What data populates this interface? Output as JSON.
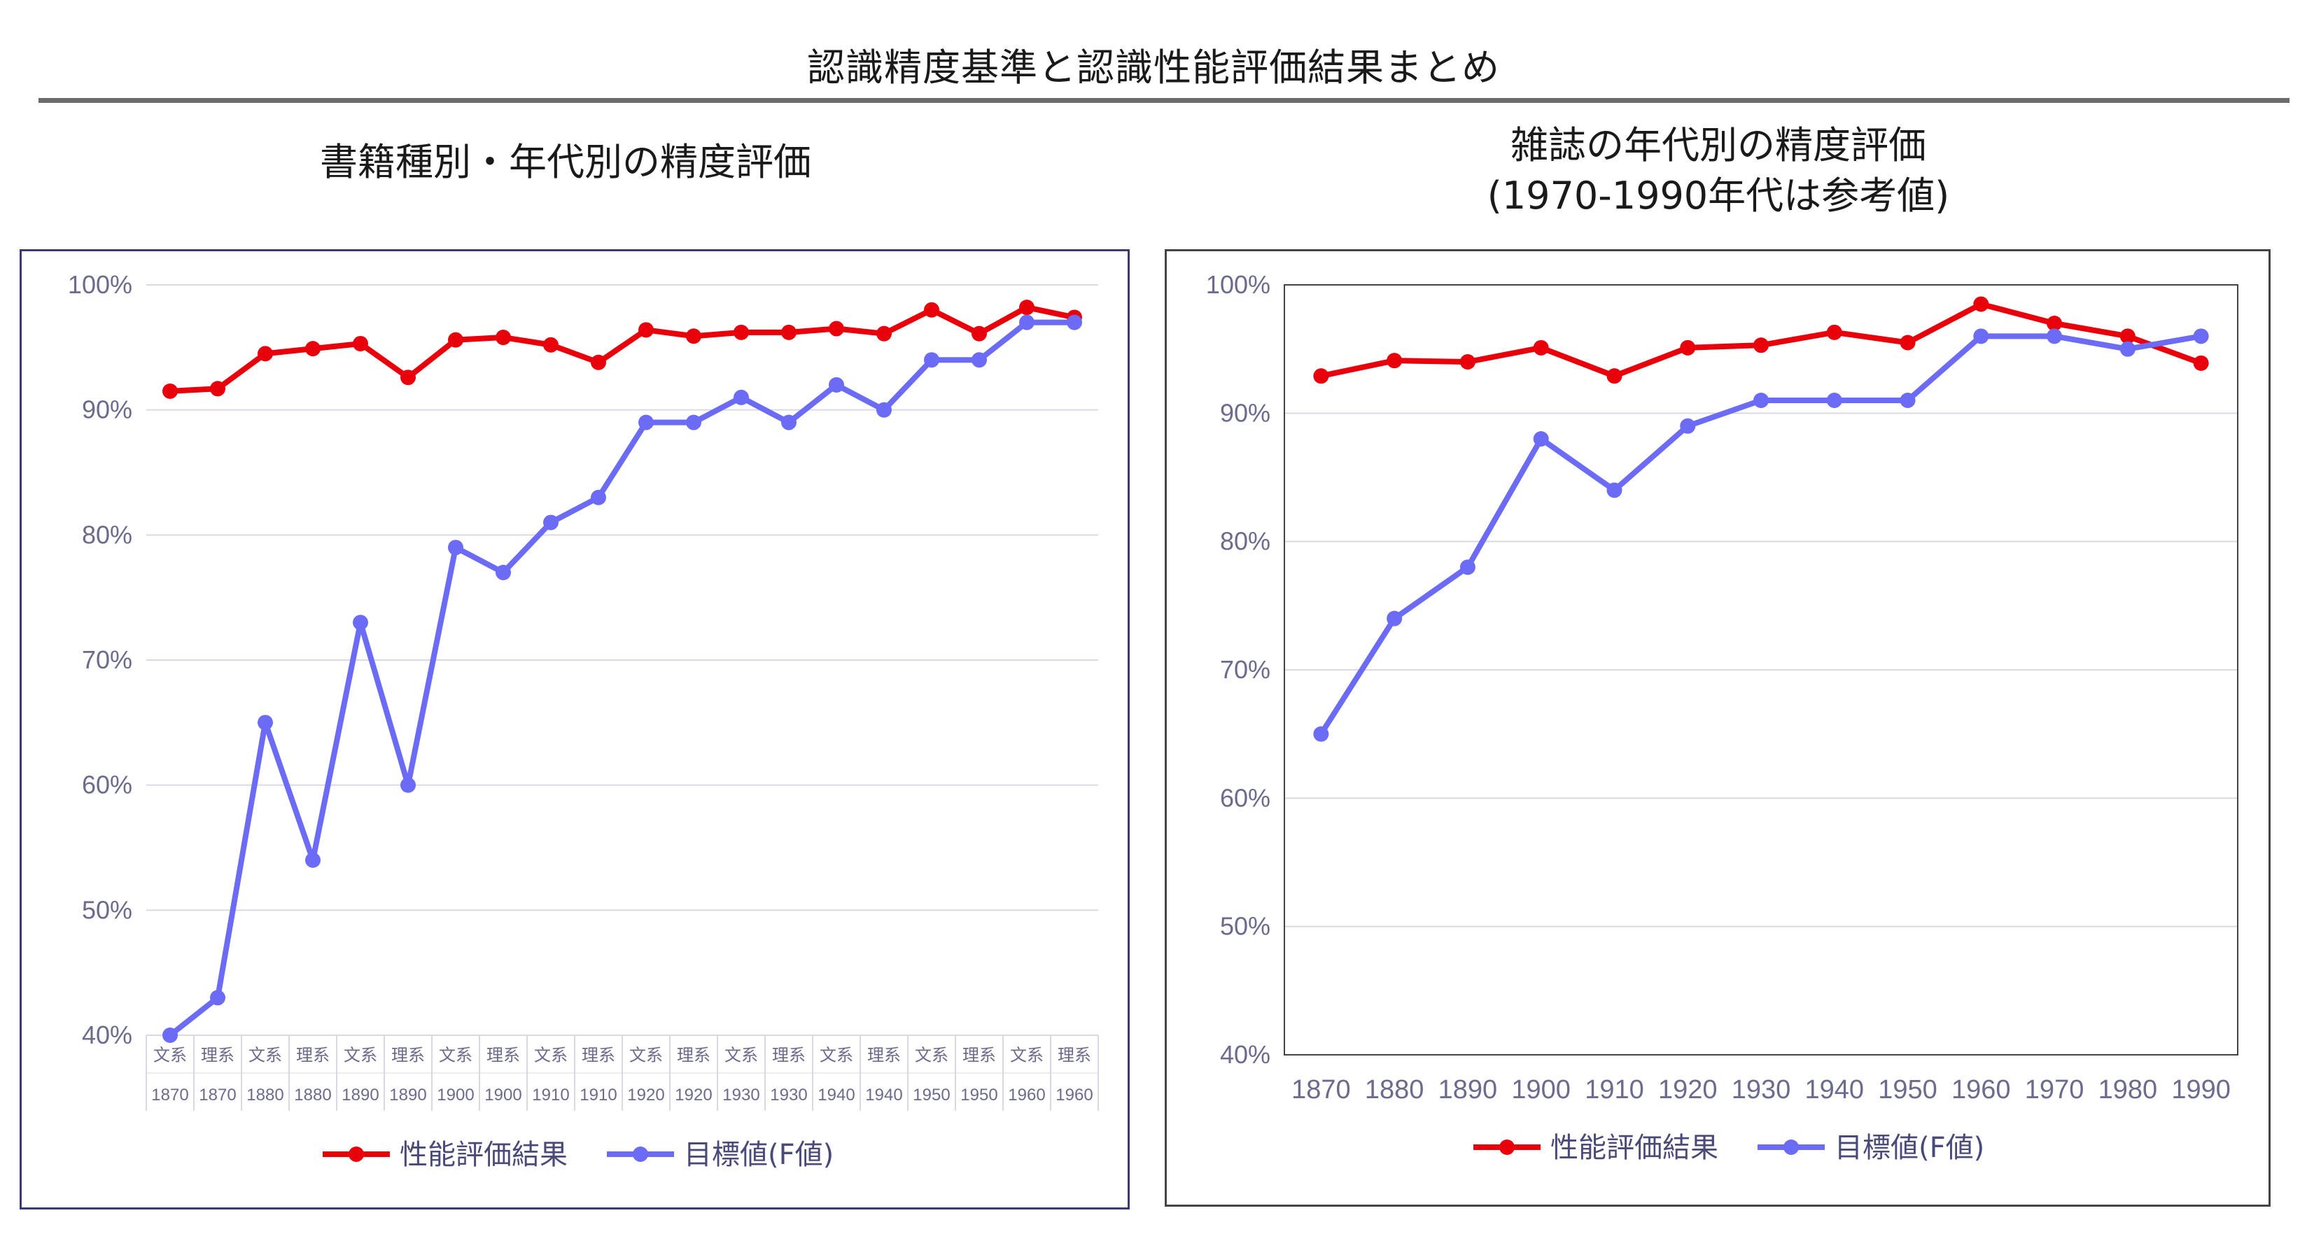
{
  "page": {
    "title": "認識精度基準と認識性能評価結果まとめ"
  },
  "colors": {
    "performance": "#e8000b",
    "target": "#6b6bf5",
    "grid": "#d9d9e6",
    "tick": "#6b6b8e"
  },
  "chart_data": [
    {
      "type": "line",
      "title": "書籍種別・年代別の精度評価",
      "xlabel": "",
      "ylabel": "",
      "ylim": [
        0.4,
        1.0
      ],
      "y_tick_labels": [
        "40%",
        "50%",
        "60%",
        "70%",
        "80%",
        "90%",
        "100%"
      ],
      "y_ticks": [
        0.4,
        0.5,
        0.6,
        0.7,
        0.8,
        0.9,
        1.0
      ],
      "categories_top": [
        "文系",
        "理系",
        "文系",
        "理系",
        "文系",
        "理系",
        "文系",
        "理系",
        "文系",
        "理系",
        "文系",
        "理系",
        "文系",
        "理系",
        "文系",
        "理系",
        "文系",
        "理系",
        "文系",
        "理系"
      ],
      "categories_bottom": [
        "1870",
        "1870",
        "1880",
        "1880",
        "1890",
        "1890",
        "1900",
        "1900",
        "1910",
        "1910",
        "1920",
        "1920",
        "1930",
        "1930",
        "1940",
        "1940",
        "1950",
        "1950",
        "1960",
        "1960"
      ],
      "grid": true,
      "legend_position": "bottom",
      "series": [
        {
          "name": "性能評価結果",
          "color_key": "performance",
          "values": [
            0.915,
            0.917,
            0.945,
            0.949,
            0.953,
            0.926,
            0.956,
            0.958,
            0.952,
            0.938,
            0.964,
            0.959,
            0.962,
            0.962,
            0.965,
            0.961,
            0.98,
            0.961,
            0.982,
            0.974
          ]
        },
        {
          "name": "目標値(F値)",
          "color_key": "target",
          "values": [
            0.4,
            0.43,
            0.65,
            0.54,
            0.73,
            0.6,
            0.79,
            0.77,
            0.81,
            0.83,
            0.89,
            0.89,
            0.91,
            0.89,
            0.92,
            0.9,
            0.94,
            0.94,
            0.97,
            0.97
          ]
        }
      ]
    },
    {
      "type": "line",
      "title": "雑誌の年代別の精度評価",
      "subtitle": "(1970-1990年代は参考値)",
      "xlabel": "",
      "ylabel": "",
      "ylim": [
        0.4,
        1.0
      ],
      "y_tick_labels": [
        "40%",
        "50%",
        "60%",
        "70%",
        "80%",
        "90%",
        "100%"
      ],
      "y_ticks": [
        0.4,
        0.5,
        0.6,
        0.7,
        0.8,
        0.9,
        1.0
      ],
      "categories": [
        "1870",
        "1880",
        "1890",
        "1900",
        "1910",
        "1920",
        "1930",
        "1940",
        "1950",
        "1960",
        "1970",
        "1980",
        "1990"
      ],
      "grid": true,
      "legend_position": "bottom",
      "series": [
        {
          "name": "性能評価結果",
          "color_key": "performance",
          "values": [
            0.929,
            0.941,
            0.94,
            0.951,
            0.929,
            0.951,
            0.953,
            0.963,
            0.955,
            0.985,
            0.97,
            0.96,
            0.939
          ]
        },
        {
          "name": "目標値(F値)",
          "color_key": "target",
          "values": [
            0.65,
            0.74,
            0.78,
            0.88,
            0.84,
            0.89,
            0.91,
            0.91,
            0.91,
            0.96,
            0.96,
            0.95,
            0.96
          ]
        }
      ]
    }
  ]
}
